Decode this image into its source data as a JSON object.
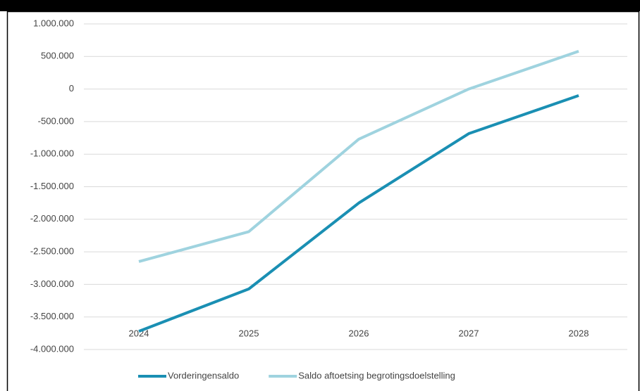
{
  "chart_data": {
    "type": "line",
    "categories": [
      "2024",
      "2025",
      "2026",
      "2027",
      "2028"
    ],
    "series": [
      {
        "name": "Vorderingensaldo",
        "color": "#1a8fb3",
        "values": [
          -3720000,
          -3070000,
          -1750000,
          -685000,
          -100000
        ]
      },
      {
        "name": "Saldo aftoetsing begrotingsdoelstelling",
        "color": "#9fd3df",
        "values": [
          -2650000,
          -2190000,
          -770000,
          0,
          580000
        ]
      }
    ],
    "ylim": [
      -4000000,
      1000000
    ],
    "yticks": [
      {
        "value": -4000000,
        "label": "-4.000.000"
      },
      {
        "value": -3500000,
        "label": "-3.500.000"
      },
      {
        "value": -3000000,
        "label": "-3.000.000"
      },
      {
        "value": -2500000,
        "label": "-2.500.000"
      },
      {
        "value": -2000000,
        "label": "-2.000.000"
      },
      {
        "value": -1500000,
        "label": "-1.500.000"
      },
      {
        "value": -1000000,
        "label": "-1.000.000"
      },
      {
        "value": -500000,
        "label": "-500.000"
      },
      0,
      {
        "value": 500000,
        "label": "500.000"
      },
      {
        "value": 1000000,
        "label": "1.000.000"
      }
    ],
    "grid": true,
    "legend": "bottom"
  }
}
